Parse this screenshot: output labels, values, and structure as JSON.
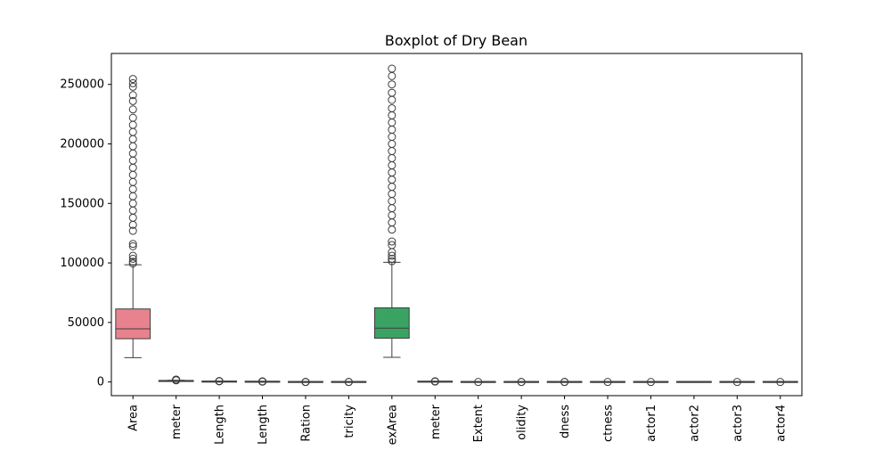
{
  "chart_data": {
    "type": "boxplot",
    "title": "Boxplot of Dry Bean",
    "xlabel": "",
    "ylabel": "",
    "ylim": [
      -11500,
      276000
    ],
    "yticks": [
      0,
      50000,
      100000,
      150000,
      200000,
      250000
    ],
    "ytick_labels": [
      "0",
      "50000",
      "100000",
      "150000",
      "200000",
      "250000"
    ],
    "grid": false,
    "categories": [
      {
        "label": "Area",
        "color": "#e8828f",
        "stats": {
          "whislo": 20420,
          "q1": 36330,
          "med": 44650,
          "q3": 61330,
          "whishi": 98500
        },
        "outliers": [
          99500,
          101000,
          103500,
          106000,
          114000,
          116000,
          127000,
          132000,
          138000,
          144000,
          150000,
          156000,
          162000,
          168000,
          174000,
          180000,
          186000,
          192000,
          198000,
          204000,
          210000,
          216000,
          222000,
          229000,
          236000,
          241000,
          248000,
          251000,
          254600
        ]
      },
      {
        "label": "meter",
        "color": "#dd8a3c",
        "stats": {
          "whislo": 524,
          "q1": 703,
          "med": 794,
          "q3": 977,
          "whishi": 1385
        },
        "outliers": [
          1400,
          1500,
          1600,
          1700,
          1800,
          1900,
          1985
        ]
      },
      {
        "label": "Length",
        "color": "#b6993a",
        "stats": {
          "whislo": 183,
          "q1": 253,
          "med": 296,
          "q3": 376,
          "whishi": 560
        },
        "outliers": [
          580,
          620,
          680,
          738
        ]
      },
      {
        "label": "Length",
        "color": "#98a33a",
        "stats": {
          "whislo": 122,
          "q1": 175,
          "med": 192,
          "q3": 217,
          "whishi": 280
        },
        "outliers": [
          290,
          320,
          360,
          400,
          460
        ]
      },
      {
        "label": "Ration",
        "color": "#4faa3c",
        "stats": {
          "whislo": 1.02,
          "q1": 1.43,
          "med": 1.55,
          "q3": 1.71,
          "whishi": 2.13
        },
        "outliers": [
          2.2,
          2.3,
          2.43
        ]
      },
      {
        "label": "tricity",
        "color": "#3fac78",
        "stats": {
          "whislo": 0.22,
          "q1": 0.72,
          "med": 0.76,
          "q3": 0.81,
          "whishi": 0.91
        },
        "outliers": [
          0.5,
          0.6
        ]
      },
      {
        "label": "exArea",
        "color": "#3aa363",
        "stats": {
          "whislo": 20684,
          "q1": 36714,
          "med": 45178,
          "q3": 62294,
          "whishi": 100500
        },
        "outliers": [
          101500,
          103500,
          106000,
          109000,
          115000,
          118000,
          128000,
          134000,
          140000,
          146000,
          152000,
          158000,
          164000,
          170000,
          176000,
          182000,
          188000,
          194000,
          200000,
          206000,
          212000,
          218000,
          224000,
          230000,
          237000,
          243000,
          250000,
          257000,
          263261
        ]
      },
      {
        "label": "meter",
        "color": "#3aa596",
        "stats": {
          "whislo": 161,
          "q1": 215,
          "med": 238,
          "q3": 279,
          "whishi": 375
        },
        "outliers": [
          380,
          420,
          480,
          569
        ]
      },
      {
        "label": "Extent",
        "color": "#3ba6ad",
        "stats": {
          "whislo": 0.56,
          "q1": 0.72,
          "med": 0.76,
          "q3": 0.79,
          "whishi": 0.87
        },
        "outliers": [
          0.6
        ]
      },
      {
        "label": "olidity",
        "color": "#3fa8c4",
        "stats": {
          "whislo": 0.97,
          "q1": 0.99,
          "med": 0.99,
          "q3": 0.99,
          "whishi": 1.0
        },
        "outliers": [
          0.92,
          0.95
        ]
      },
      {
        "label": "dness",
        "color": "#5aa0de",
        "stats": {
          "whislo": 0.49,
          "q1": 0.83,
          "med": 0.88,
          "q3": 0.92,
          "whishi": 0.99
        },
        "outliers": [
          0.55,
          0.65
        ]
      },
      {
        "label": "ctness",
        "color": "#9f91e9",
        "stats": {
          "whislo": 0.64,
          "q1": 0.76,
          "med": 0.8,
          "q3": 0.83,
          "whishi": 0.99
        },
        "outliers": [
          0.65
        ]
      },
      {
        "label": "actor1",
        "color": "#c883e8",
        "stats": {
          "whislo": 0.0028,
          "q1": 0.0059,
          "med": 0.0066,
          "q3": 0.0073,
          "whishi": 0.0105
        },
        "outliers": [
          0.011
        ]
      },
      {
        "label": "actor2",
        "color": "#e57ad0",
        "stats": {
          "whislo": 0.0006,
          "q1": 0.0012,
          "med": 0.0017,
          "q3": 0.0022,
          "whishi": 0.0037
        },
        "outliers": []
      },
      {
        "label": "actor3",
        "color": "#ea7cb5",
        "stats": {
          "whislo": 0.41,
          "q1": 0.58,
          "med": 0.64,
          "q3": 0.7,
          "whishi": 0.97
        },
        "outliers": [
          0.95
        ]
      },
      {
        "label": "actor4",
        "color": "#ec7f9c",
        "stats": {
          "whislo": 0.95,
          "q1": 0.99,
          "med": 1.0,
          "q3": 1.0,
          "whishi": 1.0
        },
        "outliers": [
          0.95
        ]
      }
    ]
  }
}
